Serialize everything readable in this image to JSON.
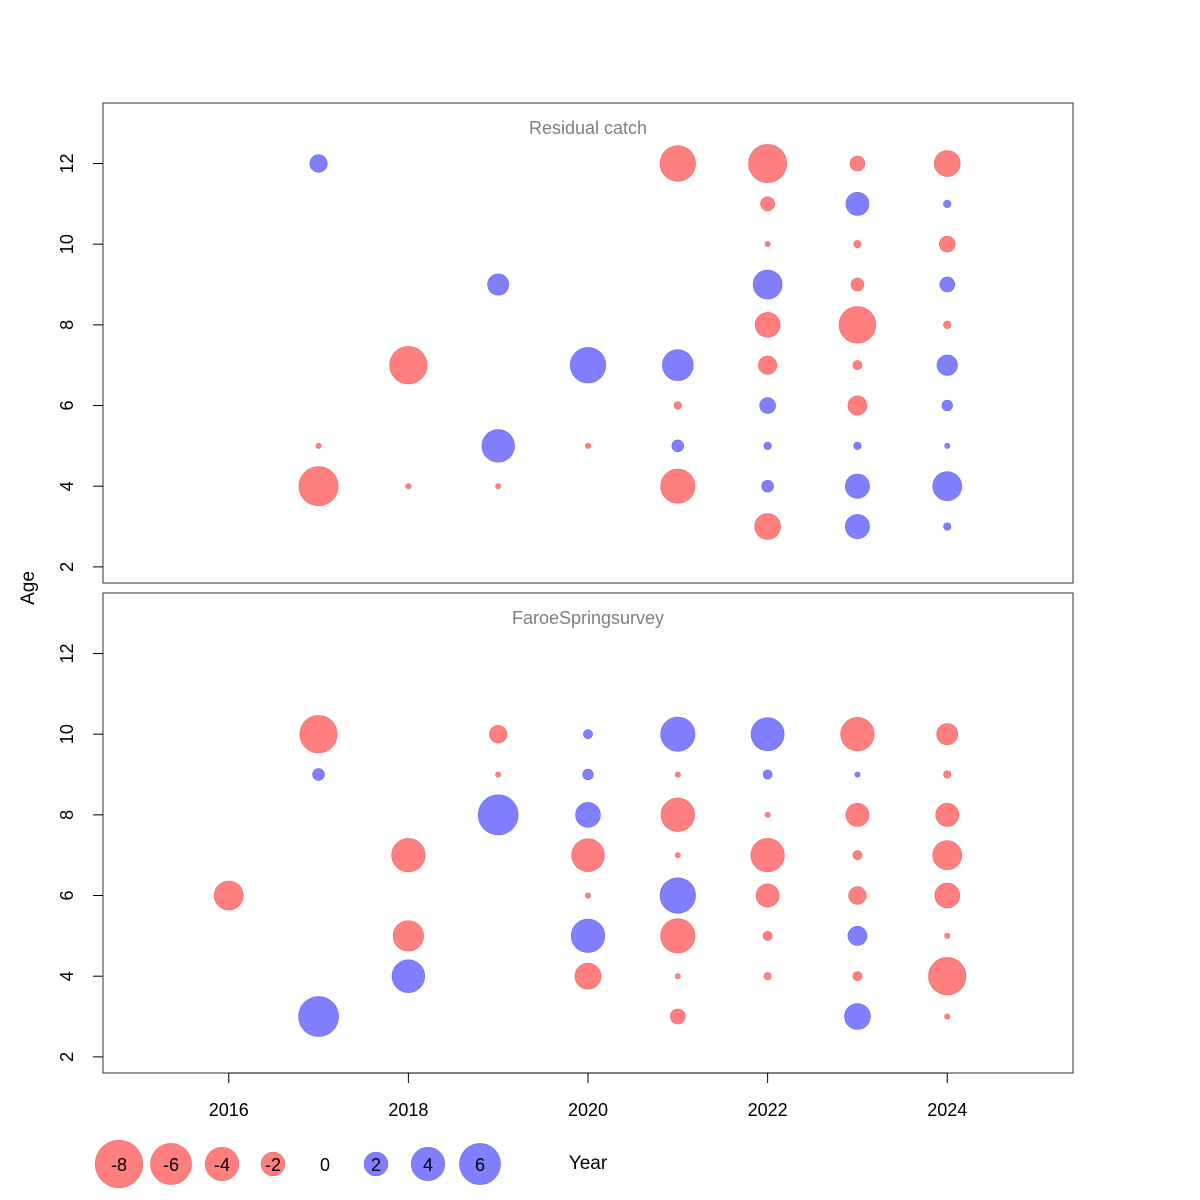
{
  "chart_data": {
    "type": "scatter",
    "description_style": "bubble residual plot",
    "xlabel": "Year",
    "ylabel": "Age",
    "xlim": [
      2014.6,
      2025.4
    ],
    "ylim": [
      1.6,
      13.5
    ],
    "x_ticks": [
      2016,
      2018,
      2020,
      2022,
      2024
    ],
    "y_ticks": [
      2,
      4,
      6,
      8,
      10,
      12
    ],
    "colors": {
      "positive": "#7f7fff",
      "negative": "#ff7f7f",
      "positive_edge": "#6a6ae6",
      "negative_edge": "#e66a6a"
    },
    "panels": [
      {
        "title": "Residual catch",
        "points": [
          [
            2017,
            12,
            1.1
          ],
          [
            2017,
            5,
            -0.1
          ],
          [
            2017,
            4,
            -5.5
          ],
          [
            2018,
            7,
            -5.0
          ],
          [
            2018,
            4,
            -0.1
          ],
          [
            2019,
            9,
            1.6
          ],
          [
            2019,
            5,
            3.8
          ],
          [
            2019,
            4,
            -0.1
          ],
          [
            2020,
            7,
            4.5
          ],
          [
            2020,
            5,
            -0.1
          ],
          [
            2021,
            12,
            -4.5
          ],
          [
            2021,
            7,
            3.4
          ],
          [
            2021,
            6,
            -0.2
          ],
          [
            2021,
            5,
            0.5
          ],
          [
            2021,
            4,
            -4.2
          ],
          [
            2022,
            12,
            -5.2
          ],
          [
            2022,
            11,
            -0.7
          ],
          [
            2022,
            10,
            -0.1
          ],
          [
            2022,
            9,
            3.0
          ],
          [
            2022,
            8,
            -2.2
          ],
          [
            2022,
            7,
            -1.2
          ],
          [
            2022,
            6,
            0.9
          ],
          [
            2022,
            5,
            0.2
          ],
          [
            2022,
            4,
            0.5
          ],
          [
            2022,
            3,
            -2.4
          ],
          [
            2023,
            12,
            -0.8
          ],
          [
            2023,
            11,
            1.9
          ],
          [
            2023,
            10,
            -0.2
          ],
          [
            2023,
            9,
            -0.6
          ],
          [
            2023,
            8,
            -4.8
          ],
          [
            2023,
            7,
            -0.3
          ],
          [
            2023,
            6,
            -1.3
          ],
          [
            2023,
            5,
            0.2
          ],
          [
            2023,
            4,
            2.1
          ],
          [
            2023,
            3,
            2.1
          ],
          [
            2024,
            12,
            -2.4
          ],
          [
            2024,
            11,
            0.2
          ],
          [
            2024,
            10,
            -0.9
          ],
          [
            2024,
            9,
            0.8
          ],
          [
            2024,
            8,
            -0.2
          ],
          [
            2024,
            7,
            1.5
          ],
          [
            2024,
            6,
            0.4
          ],
          [
            2024,
            5,
            0.1
          ],
          [
            2024,
            4,
            3.0
          ],
          [
            2024,
            3,
            0.2
          ]
        ]
      },
      {
        "title": "FaroeSpringsurvey",
        "points": [
          [
            2016,
            6,
            -3.0
          ],
          [
            2017,
            10,
            -5.0
          ],
          [
            2017,
            9,
            0.5
          ],
          [
            2017,
            3,
            5.7
          ],
          [
            2018,
            7,
            -4.0
          ],
          [
            2018,
            5,
            -3.3
          ],
          [
            2018,
            4,
            3.8
          ],
          [
            2019,
            10,
            -1.1
          ],
          [
            2019,
            9,
            -0.1
          ],
          [
            2019,
            8,
            5.7
          ],
          [
            2020,
            10,
            0.3
          ],
          [
            2020,
            9,
            0.4
          ],
          [
            2020,
            8,
            2.2
          ],
          [
            2020,
            7,
            -3.8
          ],
          [
            2020,
            6,
            -0.1
          ],
          [
            2020,
            5,
            4.0
          ],
          [
            2020,
            4,
            -2.4
          ],
          [
            2021,
            10,
            4.2
          ],
          [
            2021,
            9,
            -0.1
          ],
          [
            2021,
            8,
            -4.0
          ],
          [
            2021,
            7,
            -0.1
          ],
          [
            2021,
            6,
            4.5
          ],
          [
            2021,
            5,
            -4.2
          ],
          [
            2021,
            4,
            -0.1
          ],
          [
            2021,
            3,
            -0.8
          ],
          [
            2022,
            10,
            3.9
          ],
          [
            2022,
            9,
            0.3
          ],
          [
            2022,
            8,
            -0.1
          ],
          [
            2022,
            7,
            -4.0
          ],
          [
            2022,
            6,
            -1.9
          ],
          [
            2022,
            5,
            -0.3
          ],
          [
            2022,
            4,
            -0.2
          ],
          [
            2023,
            10,
            -4.0
          ],
          [
            2023,
            9,
            0.1
          ],
          [
            2023,
            8,
            -1.9
          ],
          [
            2023,
            7,
            -0.3
          ],
          [
            2023,
            6,
            -1.1
          ],
          [
            2023,
            5,
            1.3
          ],
          [
            2023,
            4,
            -0.3
          ],
          [
            2023,
            3,
            2.4
          ],
          [
            2024,
            10,
            -1.6
          ],
          [
            2024,
            9,
            -0.2
          ],
          [
            2024,
            8,
            -1.9
          ],
          [
            2024,
            7,
            -3.0
          ],
          [
            2024,
            6,
            -2.2
          ],
          [
            2024,
            5,
            -0.1
          ],
          [
            2024,
            4,
            -5.0
          ],
          [
            2024,
            3,
            -0.1
          ]
        ]
      }
    ],
    "legend": {
      "placement": "bottom-left",
      "entries": [
        "-8",
        "-6",
        "-4",
        "-2",
        "0",
        "2",
        "4",
        "6"
      ],
      "values": [
        -8,
        -6,
        -4,
        -2,
        0,
        2,
        4,
        6
      ]
    }
  }
}
